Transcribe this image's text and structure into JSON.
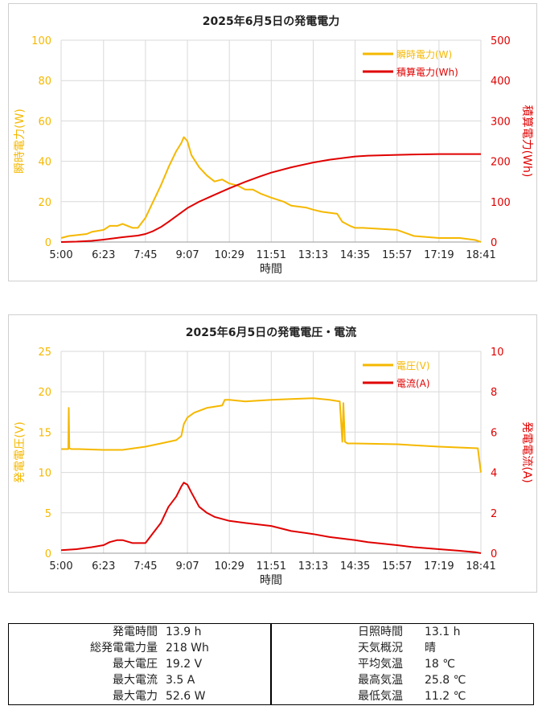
{
  "colors": {
    "power": "#f5b800",
    "energy": "#e00000",
    "voltage": "#f5b800",
    "current": "#e00000",
    "grid": "#d9d9d9",
    "axis": "#999999"
  },
  "x_ticks": [
    "5:00",
    "6:23",
    "7:45",
    "9:07",
    "10:29",
    "11:51",
    "13:13",
    "14:35",
    "15:57",
    "17:19",
    "18:41"
  ],
  "chart_data": [
    {
      "type": "line",
      "title": "2025年6月5日の発電電力",
      "xlabel": "時間",
      "ylabel_left": "瞬時電力(W)",
      "ylabel_right": "積算電力(Wh)",
      "ylim_left": [
        0,
        100
      ],
      "ylim_right": [
        0,
        500
      ],
      "yticks_left": [
        "0",
        "20",
        "40",
        "60",
        "80",
        "100"
      ],
      "yticks_right": [
        "0",
        "100",
        "200",
        "300",
        "400",
        "500"
      ],
      "grid": true,
      "legend_position": "top-right",
      "series": [
        {
          "name": "瞬時電力(W)",
          "axis": "left",
          "x": [
            "5:00",
            "5:15",
            "5:50",
            "6:00",
            "6:23",
            "6:35",
            "6:50",
            "7:00",
            "7:20",
            "7:30",
            "7:45",
            "8:00",
            "8:15",
            "8:30",
            "8:45",
            "8:55",
            "9:00",
            "9:07",
            "9:15",
            "9:30",
            "9:45",
            "10:00",
            "10:15",
            "10:29",
            "10:45",
            "11:00",
            "11:15",
            "11:30",
            "11:51",
            "12:15",
            "12:30",
            "13:00",
            "13:13",
            "13:30",
            "14:00",
            "14:10",
            "14:25",
            "14:35",
            "14:50",
            "15:57",
            "16:30",
            "17:19",
            "18:00",
            "18:30",
            "18:41"
          ],
          "values": [
            2,
            3,
            4,
            5,
            6,
            8,
            8,
            9,
            7,
            7,
            12,
            20,
            28,
            37,
            45,
            49,
            52,
            50,
            43,
            37,
            33,
            30,
            31,
            29,
            28,
            26,
            26,
            24,
            22,
            20,
            18,
            17,
            16,
            15,
            14,
            10,
            8,
            7,
            7,
            6,
            3,
            2,
            2,
            1,
            0
          ]
        },
        {
          "name": "積算電力(Wh)",
          "axis": "right",
          "x": [
            "5:00",
            "5:30",
            "6:00",
            "6:23",
            "7:00",
            "7:30",
            "7:45",
            "8:00",
            "8:15",
            "8:30",
            "8:45",
            "9:07",
            "9:30",
            "10:00",
            "10:29",
            "11:00",
            "11:30",
            "11:51",
            "12:30",
            "13:13",
            "13:45",
            "14:35",
            "15:00",
            "15:57",
            "16:30",
            "17:19",
            "18:00",
            "18:41"
          ],
          "values": [
            0,
            1,
            3,
            6,
            12,
            16,
            20,
            27,
            37,
            50,
            64,
            84,
            100,
            117,
            133,
            149,
            163,
            172,
            185,
            197,
            204,
            212,
            214,
            216,
            217,
            218,
            218,
            218
          ]
        }
      ]
    },
    {
      "type": "line",
      "title": "2025年6月5日の発電電圧・電流",
      "xlabel": "時間",
      "ylabel_left": "発電電圧(V)",
      "ylabel_right": "発電電流(A)",
      "ylim_left": [
        0,
        25
      ],
      "ylim_right": [
        0,
        10
      ],
      "yticks_left": [
        "0",
        "5",
        "10",
        "15",
        "20",
        "25"
      ],
      "yticks_right": [
        "0",
        "2",
        "4",
        "6",
        "8",
        "10"
      ],
      "grid": true,
      "legend_position": "top-right",
      "series": [
        {
          "name": "電圧(V)",
          "axis": "left",
          "x": [
            "5:00",
            "5:10",
            "5:14",
            "5:15",
            "5:16",
            "5:20",
            "5:35",
            "6:23",
            "7:00",
            "7:45",
            "8:15",
            "8:45",
            "8:55",
            "9:00",
            "9:07",
            "9:20",
            "9:45",
            "10:15",
            "10:20",
            "10:29",
            "11:00",
            "11:51",
            "12:30",
            "13:13",
            "13:45",
            "14:05",
            "14:10",
            "14:12",
            "14:15",
            "14:20",
            "14:35",
            "15:57",
            "17:19",
            "18:35",
            "18:39",
            "18:41"
          ],
          "values": [
            12.9,
            12.9,
            12.9,
            18.0,
            13.0,
            12.9,
            12.9,
            12.8,
            12.8,
            13.2,
            13.6,
            14.0,
            14.5,
            16.0,
            16.8,
            17.4,
            18.0,
            18.3,
            19.0,
            19.0,
            18.8,
            19.0,
            19.1,
            19.2,
            19.0,
            18.8,
            13.8,
            18.6,
            13.8,
            13.6,
            13.6,
            13.5,
            13.2,
            13.0,
            11.0,
            10.0
          ]
        },
        {
          "name": "電流(A)",
          "axis": "right",
          "x": [
            "5:00",
            "5:30",
            "6:00",
            "6:23",
            "6:35",
            "6:50",
            "7:00",
            "7:20",
            "7:45",
            "8:00",
            "8:15",
            "8:30",
            "8:45",
            "8:55",
            "9:00",
            "9:07",
            "9:15",
            "9:30",
            "9:45",
            "10:00",
            "10:29",
            "11:00",
            "11:51",
            "12:30",
            "13:13",
            "13:45",
            "14:35",
            "15:00",
            "15:57",
            "16:30",
            "17:19",
            "18:00",
            "18:30",
            "18:41"
          ],
          "values": [
            0.15,
            0.2,
            0.3,
            0.4,
            0.55,
            0.65,
            0.65,
            0.5,
            0.5,
            1.0,
            1.5,
            2.3,
            2.8,
            3.3,
            3.5,
            3.4,
            3.0,
            2.3,
            2.0,
            1.8,
            1.6,
            1.5,
            1.35,
            1.1,
            0.95,
            0.8,
            0.65,
            0.55,
            0.4,
            0.3,
            0.2,
            0.12,
            0.05,
            0
          ]
        }
      ]
    }
  ],
  "summary": {
    "left": [
      {
        "label": "発電時間",
        "value": "13.9  h"
      },
      {
        "label": "総発電電力量",
        "value": "218  Wh"
      },
      {
        "label": "最大電圧",
        "value": "19.2  V"
      },
      {
        "label": "最大電流",
        "value": "3.5  A"
      },
      {
        "label": "最大電力",
        "value": "52.6  W"
      }
    ],
    "right": [
      {
        "label": "日照時間",
        "value": "13.1  h"
      },
      {
        "label": "天気概況",
        "value": "晴"
      },
      {
        "label": "平均気温",
        "value": "18  ℃"
      },
      {
        "label": "最高気温",
        "value": "25.8  ℃"
      },
      {
        "label": "最低気温",
        "value": "11.2  ℃"
      }
    ]
  }
}
